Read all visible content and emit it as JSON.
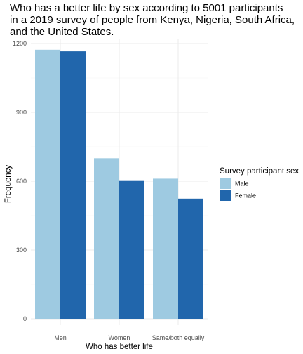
{
  "chart_data": {
    "type": "bar",
    "title_lines": [
      "Who has a better life by sex according to 5001 participants",
      "in a 2019 survey of people from Kenya, Nigeria, South Africa,",
      "and the United States."
    ],
    "xlabel": "Who has better life",
    "ylabel": "Frequency",
    "categories": [
      "Men",
      "Women",
      "Same/both equally"
    ],
    "series": [
      {
        "name": "Male",
        "color": "#9ecae1",
        "values": [
          1173,
          700,
          611
        ]
      },
      {
        "name": "Female",
        "color": "#2166ac",
        "values": [
          1166,
          604,
          524
        ]
      }
    ],
    "yticks": [
      0,
      300,
      600,
      900,
      1200
    ],
    "ylim": [
      0,
      1200
    ],
    "grid": true,
    "legend_title": "Survey participant sex",
    "legend_position": "right"
  }
}
